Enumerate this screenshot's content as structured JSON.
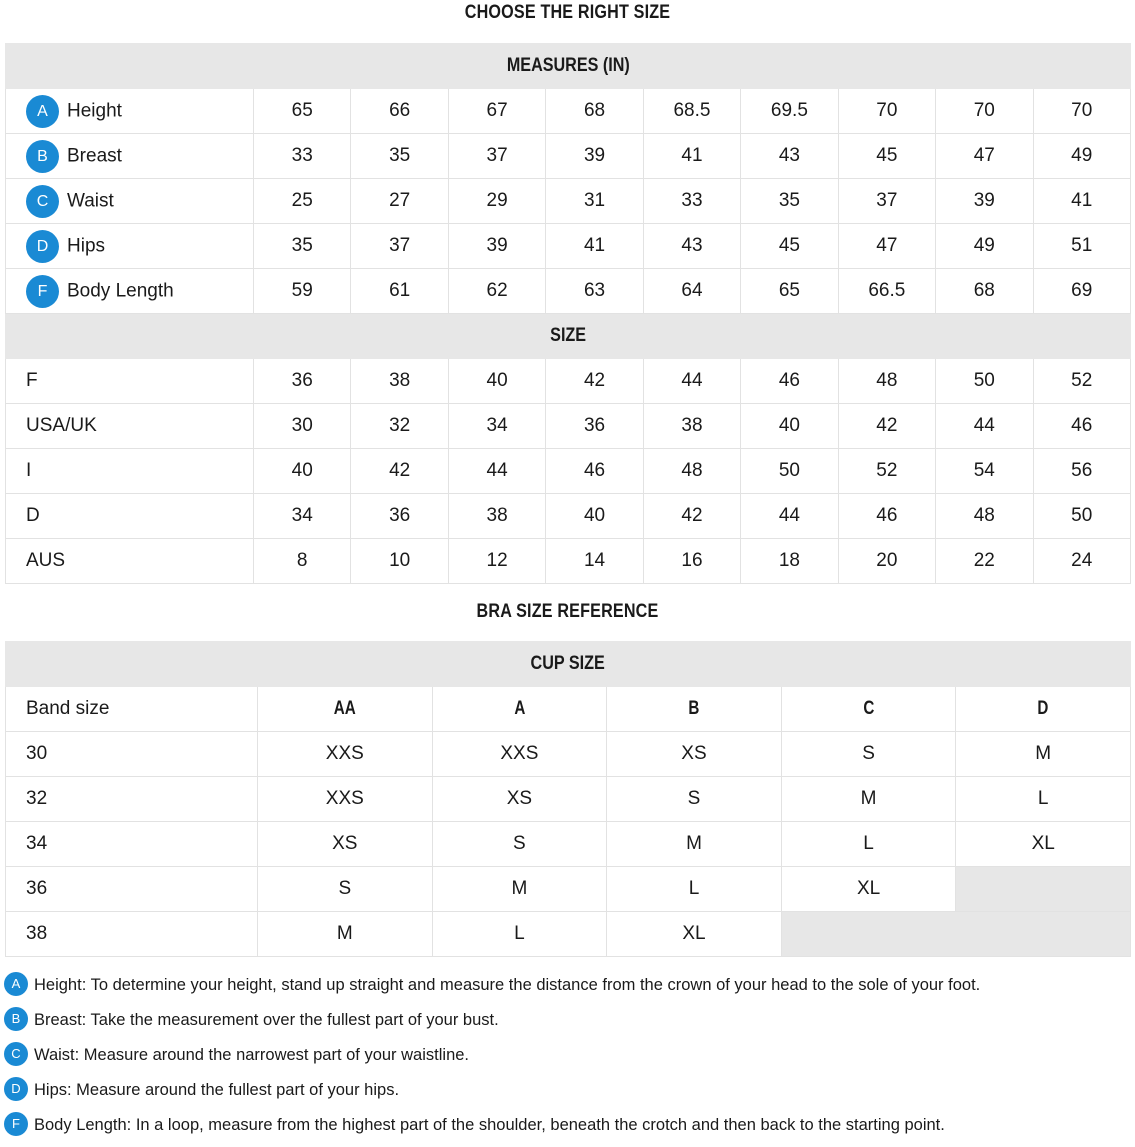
{
  "title": "CHOOSE THE RIGHT SIZE",
  "measures": {
    "header": "MEASURES (IN)",
    "rows": [
      {
        "badge": "A",
        "label": "Height",
        "values": [
          "65",
          "66",
          "67",
          "68",
          "68.5",
          "69.5",
          "70",
          "70",
          "70"
        ]
      },
      {
        "badge": "B",
        "label": "Breast",
        "values": [
          "33",
          "35",
          "37",
          "39",
          "41",
          "43",
          "45",
          "47",
          "49"
        ]
      },
      {
        "badge": "C",
        "label": "Waist",
        "values": [
          "25",
          "27",
          "29",
          "31",
          "33",
          "35",
          "37",
          "39",
          "41"
        ]
      },
      {
        "badge": "D",
        "label": "Hips",
        "values": [
          "35",
          "37",
          "39",
          "41",
          "43",
          "45",
          "47",
          "49",
          "51"
        ]
      },
      {
        "badge": "F",
        "label": "Body Length",
        "values": [
          "59",
          "61",
          "62",
          "63",
          "64",
          "65",
          "66.5",
          "68",
          "69"
        ]
      }
    ]
  },
  "sizes": {
    "header": "SIZE",
    "rows": [
      {
        "label": "F",
        "values": [
          "36",
          "38",
          "40",
          "42",
          "44",
          "46",
          "48",
          "50",
          "52"
        ]
      },
      {
        "label": "USA/UK",
        "values": [
          "30",
          "32",
          "34",
          "36",
          "38",
          "40",
          "42",
          "44",
          "46"
        ]
      },
      {
        "label": "I",
        "values": [
          "40",
          "42",
          "44",
          "46",
          "48",
          "50",
          "52",
          "54",
          "56"
        ]
      },
      {
        "label": "D",
        "values": [
          "34",
          "36",
          "38",
          "40",
          "42",
          "44",
          "46",
          "48",
          "50"
        ]
      },
      {
        "label": "AUS",
        "values": [
          "8",
          "10",
          "12",
          "14",
          "16",
          "18",
          "20",
          "22",
          "24"
        ]
      }
    ]
  },
  "bra": {
    "title": "BRA SIZE REFERENCE",
    "header": "CUP SIZE",
    "band_label": "Band size",
    "cups": [
      "AA",
      "A",
      "B",
      "C",
      "D"
    ],
    "rows": [
      {
        "band": "30",
        "values": [
          "XXS",
          "XXS",
          "XS",
          "S",
          "M"
        ]
      },
      {
        "band": "32",
        "values": [
          "XXS",
          "XS",
          "S",
          "M",
          "L"
        ]
      },
      {
        "band": "34",
        "values": [
          "XS",
          "S",
          "M",
          "L",
          "XL"
        ]
      },
      {
        "band": "36",
        "values": [
          "S",
          "M",
          "L",
          "XL",
          ""
        ]
      },
      {
        "band": "38",
        "values": [
          "M",
          "L",
          "XL",
          "",
          ""
        ]
      }
    ]
  },
  "notes": [
    {
      "badge": "A",
      "text": "Height: To determine your height, stand up straight and measure the distance from the crown of your head to the sole of your foot."
    },
    {
      "badge": "B",
      "text": "Breast: Take the measurement over the fullest part of your bust."
    },
    {
      "badge": "C",
      "text": "Waist: Measure around the narrowest part of your waistline."
    },
    {
      "badge": "D",
      "text": "Hips: Measure around the fullest part of your hips."
    },
    {
      "badge": "F",
      "text": "Body Length: In a loop, measure from the highest part of the shoulder, beneath the crotch and then back to the starting point."
    }
  ],
  "colors": {
    "badge": "#1a8ad4",
    "header_bg": "#e7e7e7"
  }
}
